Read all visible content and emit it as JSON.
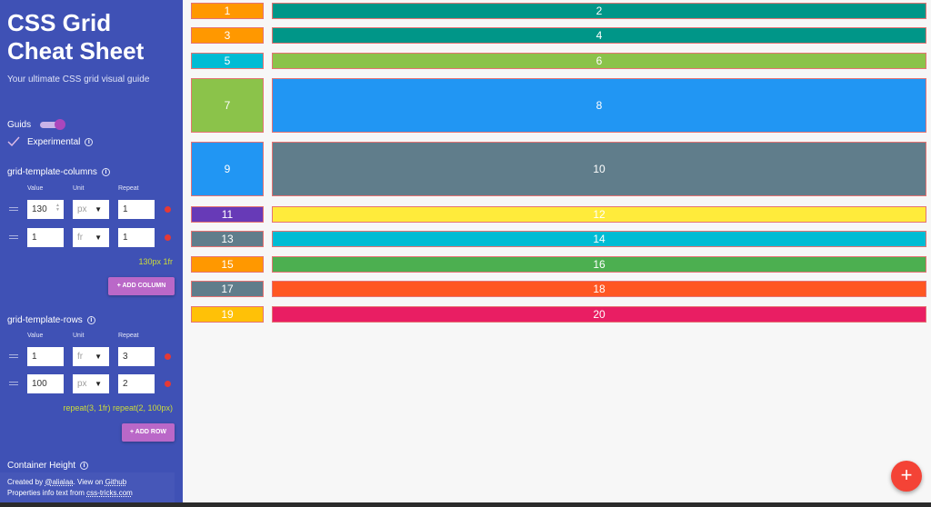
{
  "sidebar": {
    "title": "CSS Grid Cheat Sheet",
    "tagline": "Your ultimate CSS grid visual guide",
    "guids_label": "Guids",
    "guids_on": true,
    "experimental_label": "Experimental",
    "experimental_checked": true,
    "columns_section": {
      "title": "grid-template-columns",
      "headers": {
        "value": "Value",
        "unit": "Unit",
        "repeat": "Repeat"
      },
      "rows": [
        {
          "value": "130",
          "unit": "px",
          "repeat": "1"
        },
        {
          "value": "1",
          "unit": "fr",
          "repeat": "1"
        }
      ],
      "summary": "130px 1fr",
      "add_label": "+ ADD COLUMN"
    },
    "rows_section": {
      "title": "grid-template-rows",
      "headers": {
        "value": "Value",
        "unit": "Unit",
        "repeat": "Repeat"
      },
      "rows": [
        {
          "value": "1",
          "unit": "fr",
          "repeat": "3"
        },
        {
          "value": "100",
          "unit": "px",
          "repeat": "2"
        }
      ],
      "summary": "repeat(3, 1fr) repeat(2, 100px)",
      "add_label": "+ ADD ROW"
    },
    "container_height_label": "Container Height",
    "footer": {
      "created_prefix": "Created by ",
      "author": "@alialaa",
      "view_on": ". View on ",
      "github": "Github",
      "props_prefix": "Properties info text from ",
      "css_tricks": "css-tricks.com"
    }
  },
  "grid": {
    "items": [
      {
        "label": "1",
        "color": "#ff9800"
      },
      {
        "label": "2",
        "color": "#009688"
      },
      {
        "label": "3",
        "color": "#ff9800"
      },
      {
        "label": "4",
        "color": "#009688"
      },
      {
        "label": "5",
        "color": "#00bcd4"
      },
      {
        "label": "6",
        "color": "#8bc34a"
      },
      {
        "label": "7",
        "color": "#8bc34a"
      },
      {
        "label": "8",
        "color": "#2196f3"
      },
      {
        "label": "9",
        "color": "#2196f3"
      },
      {
        "label": "10",
        "color": "#607d8b"
      },
      {
        "label": "11",
        "color": "#673ab7"
      },
      {
        "label": "12",
        "color": "#ffeb3b"
      },
      {
        "label": "13",
        "color": "#607d8b"
      },
      {
        "label": "14",
        "color": "#00bcd4"
      },
      {
        "label": "15",
        "color": "#ff9800"
      },
      {
        "label": "16",
        "color": "#4caf50"
      },
      {
        "label": "17",
        "color": "#607d8b"
      },
      {
        "label": "18",
        "color": "#ff5722"
      },
      {
        "label": "19",
        "color": "#ffc107"
      },
      {
        "label": "20",
        "color": "#e91e63"
      }
    ]
  },
  "fab_label": "+",
  "colors": {
    "sidebar_bg": "#3f51b5",
    "accent": "#ba68c8",
    "summary_text": "#cddc39",
    "fab": "#f44336"
  }
}
